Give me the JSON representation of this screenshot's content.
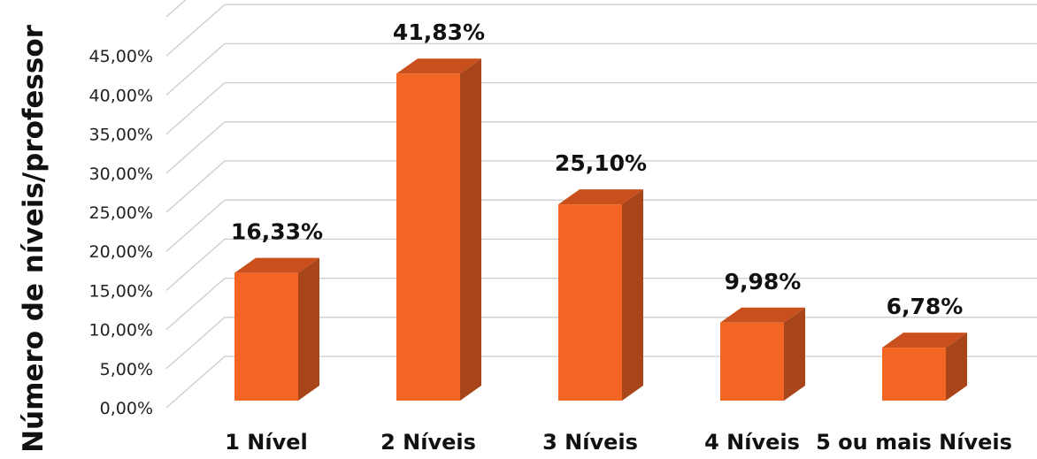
{
  "chart_data": {
    "type": "bar",
    "title": "",
    "xlabel": "",
    "ylabel": "Número de níveis/professor",
    "categories": [
      "1 Nível",
      "2 Níveis",
      "3 Níveis",
      "4 Níveis",
      "5 ou mais Níveis"
    ],
    "values": [
      16.33,
      41.83,
      25.1,
      9.98,
      6.78
    ],
    "data_labels": [
      "16,33%",
      "41,83%",
      "25,10%",
      "9,98%",
      "6,78%"
    ],
    "y_ticks": [
      "0,00%",
      "5,00%",
      "10,00%",
      "15,00%",
      "20,00%",
      "25,00%",
      "30,00%",
      "35,00%",
      "40,00%",
      "45,00%"
    ],
    "ylim": [
      0,
      50
    ],
    "grid": true,
    "style": "3d-column",
    "colors": {
      "front": "#F26522",
      "side": "#A8451A",
      "top": "#C9501C",
      "grid": "#CCCCCC"
    }
  }
}
